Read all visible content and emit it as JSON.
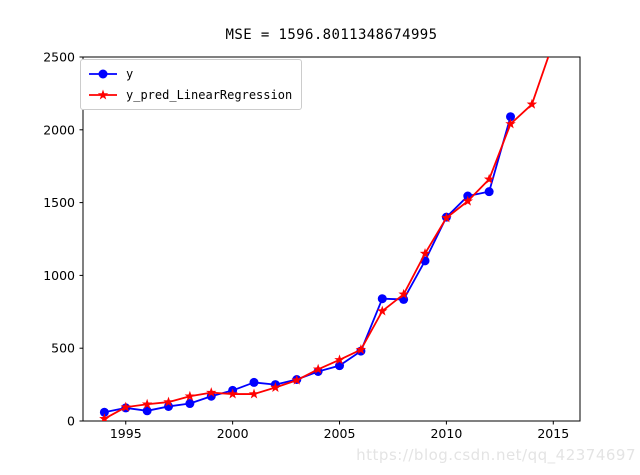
{
  "title": "MSE = 1596.8011348674995",
  "watermark": "https://blog.csdn.net/qq_42374697",
  "axis": {
    "tick_color": "#000000",
    "spine_color": "#000000",
    "tick_label_color": "#000000"
  },
  "legend": {
    "position": "upper left",
    "border_color": "#cccccc",
    "background": "#ffffff"
  },
  "chart_data": {
    "type": "line",
    "title": "MSE = 1596.8011348674995",
    "xlabel": "",
    "ylabel": "",
    "xlim": [
      1993.0,
      2016.25
    ],
    "ylim": [
      0,
      2500
    ],
    "xticks": [
      1995,
      2000,
      2005,
      2010,
      2015
    ],
    "yticks": [
      0,
      500,
      1000,
      1500,
      2000,
      2500
    ],
    "grid": false,
    "legend_position": "upper left",
    "series": [
      {
        "name": "y",
        "color": "#0000ff",
        "marker": "circle",
        "x": [
          1994,
          1995,
          1996,
          1997,
          1998,
          1999,
          2000,
          2001,
          2002,
          2003,
          2004,
          2005,
          2006,
          2007,
          2008,
          2009,
          2010,
          2011,
          2012,
          2013
        ],
        "values": [
          60,
          90,
          70,
          100,
          120,
          170,
          210,
          265,
          250,
          285,
          340,
          380,
          480,
          840,
          835,
          1100,
          1400,
          1545,
          1575,
          2090
        ]
      },
      {
        "name": "y_pred_LinearRegression",
        "color": "#ff0000",
        "marker": "star",
        "x": [
          1994,
          1995,
          1996,
          1997,
          1998,
          1999,
          2000,
          2001,
          2002,
          2003,
          2004,
          2005,
          2006,
          2007,
          2008,
          2009,
          2010,
          2011,
          2012,
          2013,
          2014,
          2015
        ],
        "values": [
          15,
          95,
          115,
          130,
          170,
          195,
          185,
          185,
          230,
          280,
          355,
          420,
          490,
          755,
          870,
          1150,
          1395,
          1510,
          1660,
          2040,
          2175,
          2600
        ]
      }
    ]
  }
}
